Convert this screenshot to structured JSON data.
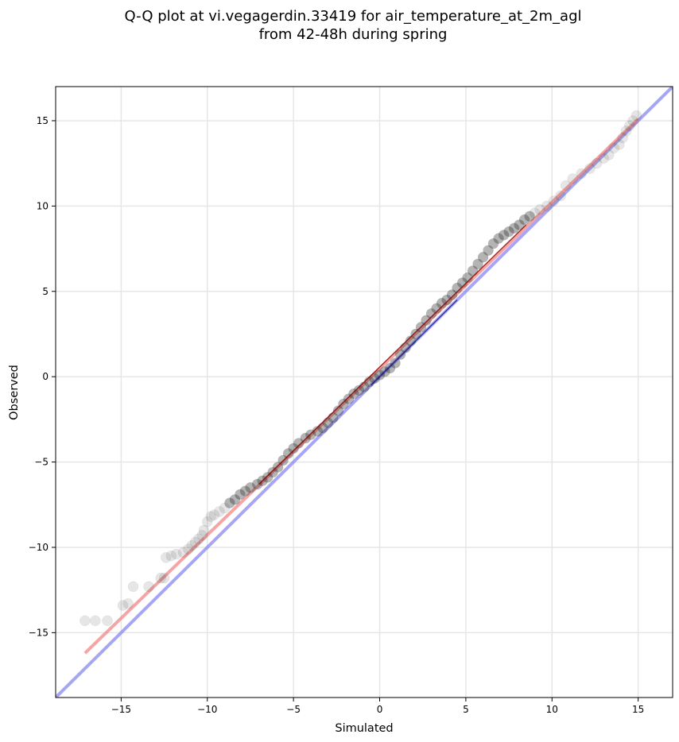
{
  "chart_data": {
    "type": "scatter",
    "title_lines": [
      "Q-Q plot at vi.vegagerdin.33419 for air_temperature_at_2m_agl",
      "from 42-48h during spring"
    ],
    "xlabel": "Simulated",
    "ylabel": "Observed",
    "xlim": [
      -18.8,
      17.0
    ],
    "ylim": [
      -18.8,
      17.0
    ],
    "xticks": [
      -15,
      -10,
      -5,
      0,
      5,
      10,
      15
    ],
    "yticks": [
      -15,
      -10,
      -5,
      0,
      5,
      10,
      15
    ],
    "xtick_labels": [
      "−15",
      "−10",
      "−5",
      "0",
      "5",
      "10",
      "15"
    ],
    "ytick_labels": [
      "−15",
      "−10",
      "−5",
      "0",
      "5",
      "10",
      "15"
    ],
    "grid": true,
    "colors": {
      "points": "#333333",
      "fit_line": "#f08080",
      "identity_line": "#8080f0",
      "fit_core": "#8b0000",
      "identity_core": "#00008b"
    },
    "series": [
      {
        "kind": "points",
        "points": [
          [
            -17.1,
            -14.3
          ],
          [
            -16.5,
            -14.3
          ],
          [
            -15.8,
            -14.3
          ],
          [
            -14.9,
            -13.4
          ],
          [
            -14.6,
            -13.3
          ],
          [
            -14.3,
            -12.3
          ],
          [
            -13.4,
            -12.3
          ],
          [
            -12.7,
            -11.8
          ],
          [
            -12.5,
            -11.8
          ],
          [
            -12.4,
            -10.6
          ],
          [
            -12.1,
            -10.5
          ],
          [
            -11.8,
            -10.4
          ],
          [
            -11.4,
            -10.3
          ],
          [
            -11.1,
            -10.1
          ],
          [
            -10.9,
            -9.9
          ],
          [
            -10.7,
            -9.7
          ],
          [
            -10.5,
            -9.5
          ],
          [
            -10.3,
            -9.3
          ],
          [
            -10.2,
            -9.0
          ],
          [
            -10.0,
            -8.5
          ],
          [
            -9.8,
            -8.2
          ],
          [
            -9.6,
            -8.1
          ],
          [
            -9.3,
            -7.9
          ],
          [
            -9.0,
            -7.7
          ],
          [
            -8.7,
            -7.4
          ],
          [
            -8.4,
            -7.2
          ],
          [
            -8.1,
            -6.9
          ],
          [
            -7.8,
            -6.7
          ],
          [
            -7.5,
            -6.5
          ],
          [
            -7.1,
            -6.3
          ],
          [
            -6.8,
            -6.1
          ],
          [
            -6.5,
            -5.9
          ],
          [
            -6.2,
            -5.6
          ],
          [
            -5.9,
            -5.3
          ],
          [
            -5.6,
            -4.9
          ],
          [
            -5.3,
            -4.5
          ],
          [
            -5.0,
            -4.2
          ],
          [
            -4.7,
            -3.9
          ],
          [
            -4.3,
            -3.6
          ],
          [
            -4.0,
            -3.4
          ],
          [
            -3.6,
            -3.2
          ],
          [
            -3.3,
            -3.0
          ],
          [
            -3.0,
            -2.7
          ],
          [
            -2.7,
            -2.4
          ],
          [
            -2.4,
            -2.0
          ],
          [
            -2.1,
            -1.6
          ],
          [
            -1.8,
            -1.3
          ],
          [
            -1.5,
            -1.0
          ],
          [
            -1.2,
            -0.8
          ],
          [
            -0.9,
            -0.6
          ],
          [
            -0.6,
            -0.3
          ],
          [
            -0.3,
            -0.1
          ],
          [
            0.0,
            0.1
          ],
          [
            0.3,
            0.3
          ],
          [
            0.6,
            0.5
          ],
          [
            0.9,
            0.8
          ],
          [
            1.2,
            1.3
          ],
          [
            1.5,
            1.7
          ],
          [
            1.8,
            2.1
          ],
          [
            2.1,
            2.5
          ],
          [
            2.4,
            2.9
          ],
          [
            2.7,
            3.3
          ],
          [
            3.0,
            3.7
          ],
          [
            3.3,
            4.0
          ],
          [
            3.6,
            4.3
          ],
          [
            3.9,
            4.5
          ],
          [
            4.2,
            4.8
          ],
          [
            4.5,
            5.2
          ],
          [
            4.8,
            5.5
          ],
          [
            5.1,
            5.8
          ],
          [
            5.4,
            6.2
          ],
          [
            5.7,
            6.6
          ],
          [
            6.0,
            7.0
          ],
          [
            6.3,
            7.4
          ],
          [
            6.6,
            7.8
          ],
          [
            6.9,
            8.1
          ],
          [
            7.2,
            8.3
          ],
          [
            7.5,
            8.5
          ],
          [
            7.8,
            8.7
          ],
          [
            8.1,
            8.9
          ],
          [
            8.4,
            9.2
          ],
          [
            8.7,
            9.4
          ],
          [
            9.0,
            9.6
          ],
          [
            9.3,
            9.8
          ],
          [
            9.7,
            10.0
          ],
          [
            10.1,
            10.3
          ],
          [
            10.5,
            10.6
          ],
          [
            10.8,
            11.2
          ],
          [
            11.2,
            11.6
          ],
          [
            11.7,
            11.9
          ],
          [
            12.2,
            12.2
          ],
          [
            12.6,
            12.5
          ],
          [
            13.0,
            12.8
          ],
          [
            13.3,
            13.0
          ],
          [
            13.6,
            13.4
          ],
          [
            13.9,
            13.6
          ],
          [
            14.1,
            14.0
          ],
          [
            14.3,
            14.4
          ],
          [
            14.5,
            14.7
          ],
          [
            14.7,
            15.0
          ],
          [
            14.9,
            15.3
          ]
        ]
      },
      {
        "kind": "fit_line",
        "points": [
          [
            -17.1,
            -16.2
          ],
          [
            15.0,
            15.1
          ]
        ]
      },
      {
        "kind": "identity_line",
        "points": [
          [
            -18.8,
            -18.8
          ],
          [
            17.0,
            17.0
          ]
        ]
      }
    ]
  }
}
